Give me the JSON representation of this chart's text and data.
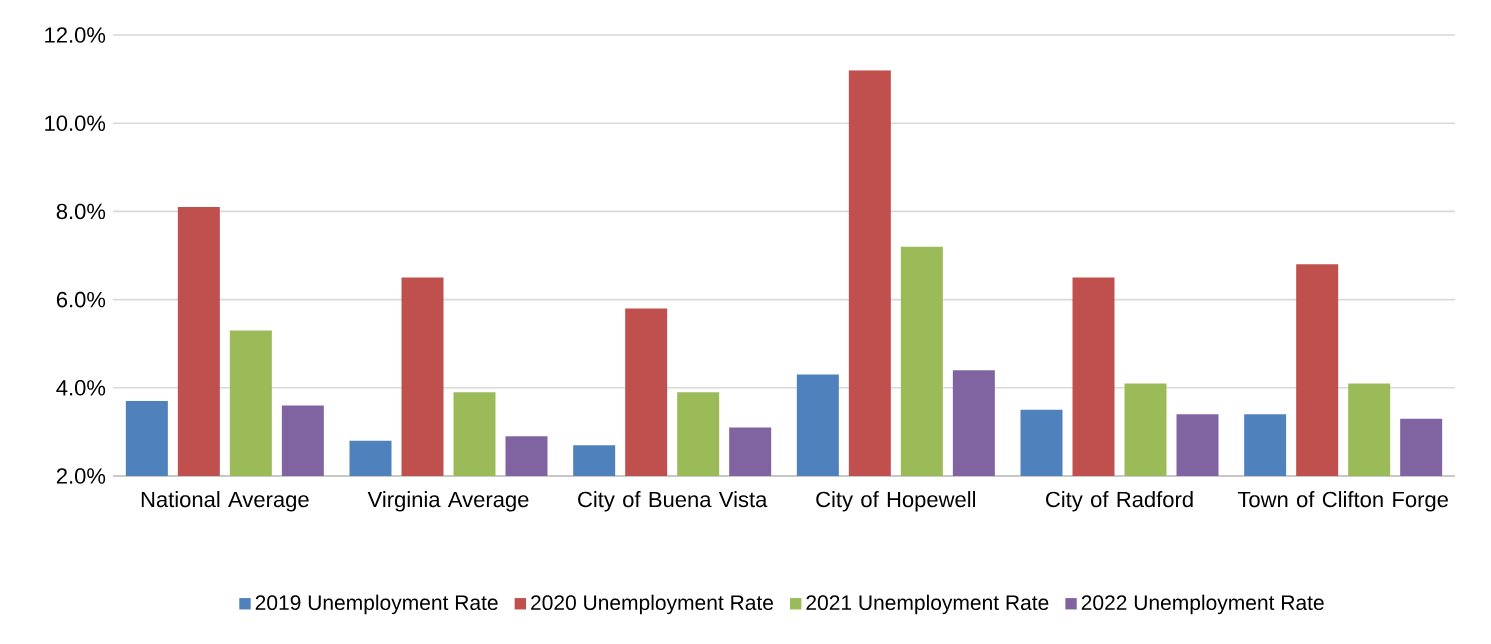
{
  "chart_data": {
    "type": "bar",
    "categories": [
      "National Average",
      "Virginia Average",
      "City of Buena Vista",
      "City of Hopewell",
      "City of Radford",
      "Town of Clifton Forge"
    ],
    "series": [
      {
        "name": "2019 Unemployment Rate",
        "color": "#4f81bd",
        "values": [
          3.7,
          2.8,
          2.7,
          4.3,
          3.5,
          3.4
        ]
      },
      {
        "name": "2020 Unemployment Rate",
        "color": "#c0504d",
        "values": [
          8.1,
          6.5,
          5.8,
          11.2,
          6.5,
          6.8
        ]
      },
      {
        "name": "2021 Unemployment Rate",
        "color": "#9bbb59",
        "values": [
          5.3,
          3.9,
          3.9,
          7.2,
          4.1,
          4.1
        ]
      },
      {
        "name": "2022 Unemployment Rate",
        "color": "#8064a2",
        "values": [
          3.6,
          2.9,
          3.1,
          4.4,
          3.4,
          3.3
        ]
      }
    ],
    "ylim": [
      2,
      12
    ],
    "yticks": [
      {
        "value": 2,
        "label": "2.0%"
      },
      {
        "value": 4,
        "label": "4.0%"
      },
      {
        "value": 6,
        "label": "6.0%"
      },
      {
        "value": 8,
        "label": "8.0%"
      },
      {
        "value": 10,
        "label": "10.0%"
      },
      {
        "value": 12,
        "label": "12.0%"
      }
    ],
    "grid": "y",
    "legend": "bottom"
  }
}
